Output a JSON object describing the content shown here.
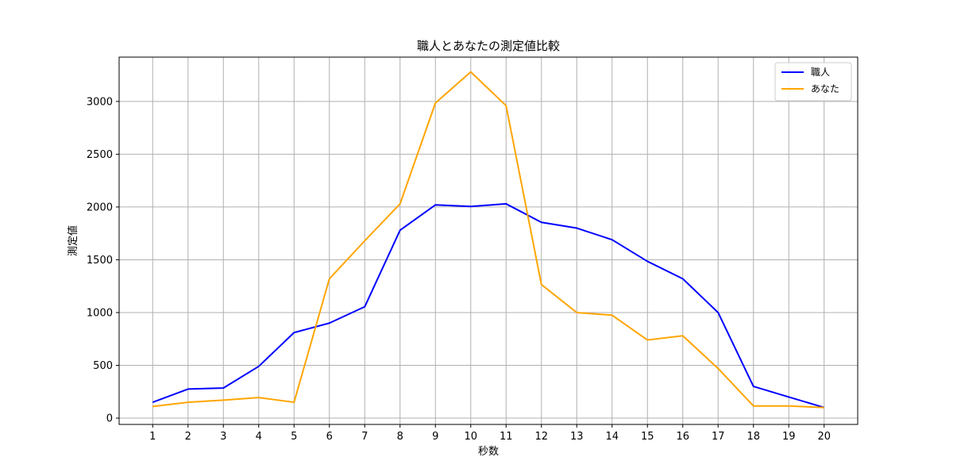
{
  "chart_data": {
    "type": "line",
    "title": "職人とあなたの測定値比較",
    "xlabel": "秒数",
    "ylabel": "測定値",
    "x": [
      1,
      2,
      3,
      4,
      5,
      6,
      7,
      8,
      9,
      10,
      11,
      12,
      13,
      14,
      15,
      16,
      17,
      18,
      19,
      20
    ],
    "xlim": [
      0.05,
      20.95
    ],
    "ylim": [
      -60,
      3420
    ],
    "yticks": [
      0,
      500,
      1000,
      1500,
      2000,
      2500,
      3000
    ],
    "grid": true,
    "legend_position": "top-right",
    "series": [
      {
        "name": "職人",
        "color": "#0000ff",
        "values": [
          150,
          275,
          285,
          490,
          810,
          900,
          1055,
          1780,
          2020,
          2005,
          2030,
          1855,
          1800,
          1690,
          1485,
          1320,
          1000,
          300,
          200,
          100
        ]
      },
      {
        "name": "あなた",
        "color": "#ffa500",
        "values": [
          110,
          150,
          170,
          195,
          150,
          1320,
          1680,
          2030,
          2985,
          3280,
          2960,
          1265,
          1000,
          975,
          740,
          780,
          470,
          115,
          115,
          100
        ]
      }
    ]
  }
}
